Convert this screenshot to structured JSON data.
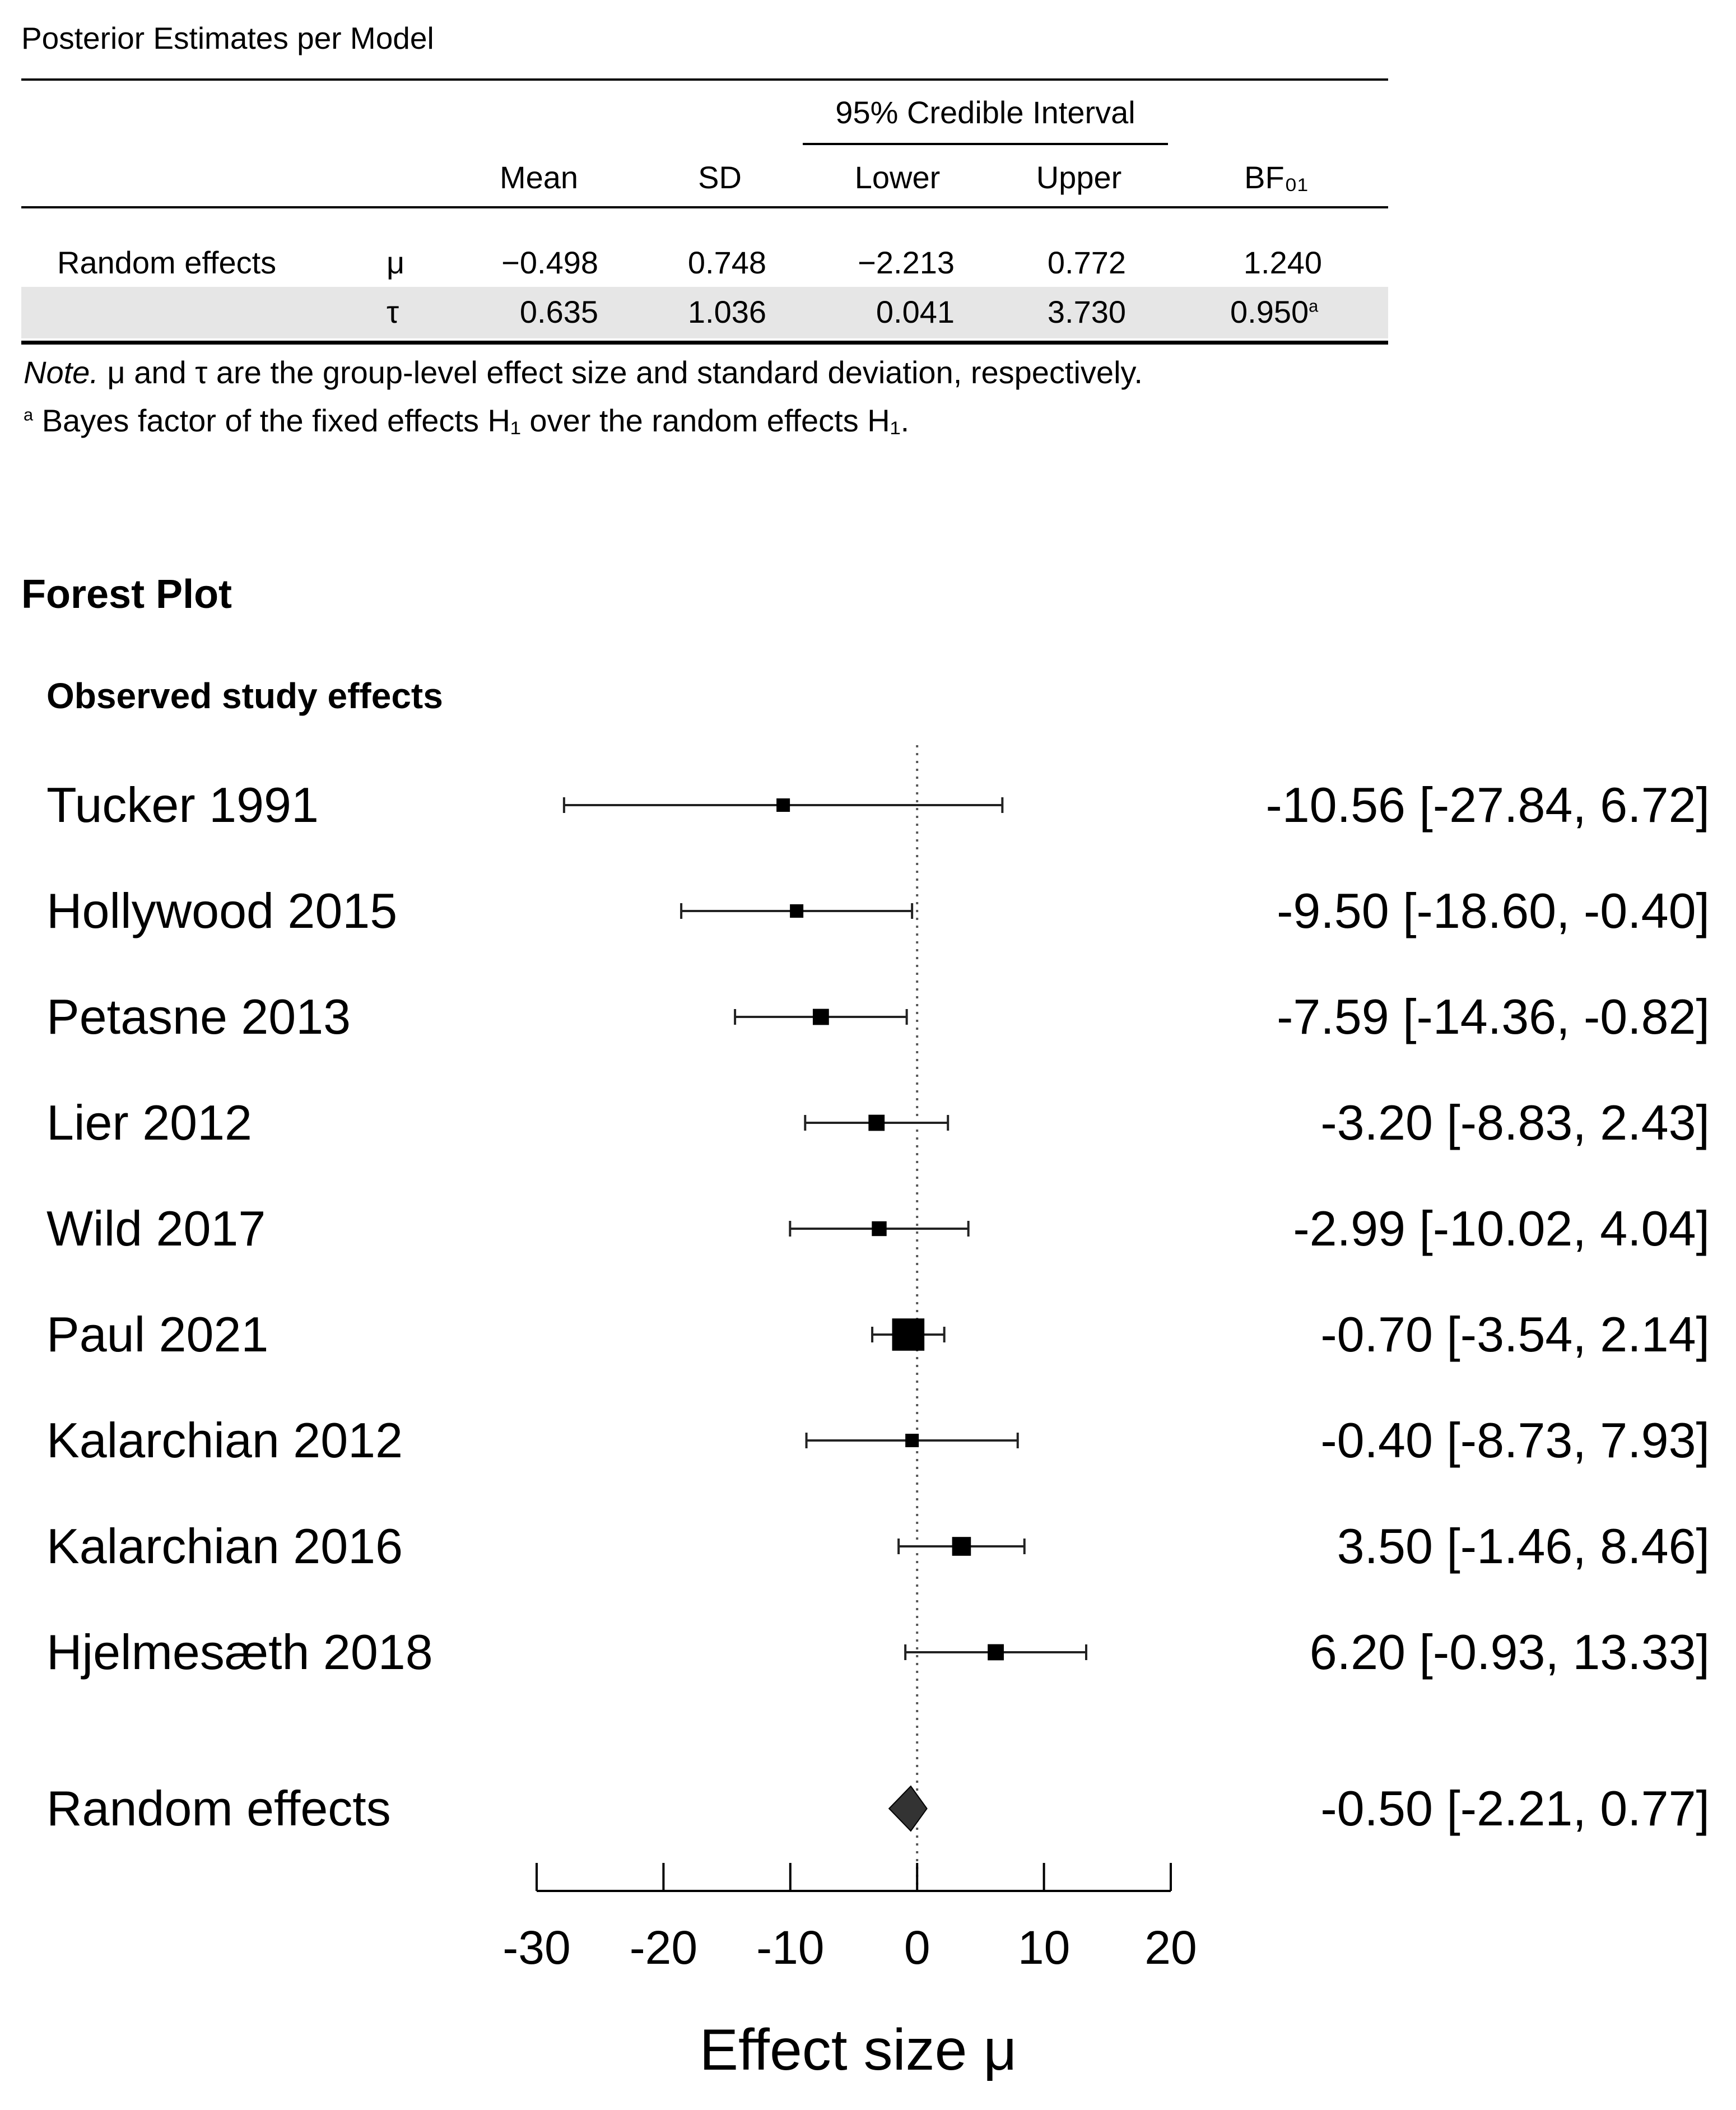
{
  "table": {
    "title": "Posterior Estimates per Model",
    "ci_header": "95% Credible Interval",
    "columns": [
      "Mean",
      "SD",
      "Lower",
      "Upper",
      "BF₀₁"
    ],
    "rows": [
      {
        "model": "Random effects",
        "param": "μ",
        "mean": "−0.498",
        "sd": "0.748",
        "lower": "−2.213",
        "upper": "0.772",
        "bf": "1.240",
        "bf_mark": ""
      },
      {
        "model": "",
        "param": "τ",
        "mean": "0.635",
        "sd": "1.036",
        "lower": "0.041",
        "upper": "3.730",
        "bf": "0.950",
        "bf_mark": "a"
      }
    ],
    "note_label": "Note.",
    "note_text": " μ and τ are the group-level effect size and standard deviation, respectively.",
    "footnote_mark": "a",
    "footnote_text": " Bayes factor of the fixed effects H₁ over the random effects H₁."
  },
  "forest": {
    "title": "Forest Plot",
    "subtitle": "Observed study effects"
  },
  "chart_data": {
    "type": "forest",
    "xlabel": "Effect size μ",
    "xlim": [
      -30,
      20
    ],
    "xticks": [
      -30,
      -20,
      -10,
      0,
      10,
      20
    ],
    "reference_line": 0,
    "studies": [
      {
        "label": "Tucker 1991",
        "estimate": -10.56,
        "lower": -27.84,
        "upper": 6.72,
        "text": "-10.56 [-27.84, 6.72]",
        "weight": 1
      },
      {
        "label": "Hollywood 2015",
        "estimate": -9.5,
        "lower": -18.6,
        "upper": -0.4,
        "text": "-9.50 [-18.60, -0.40]",
        "weight": 1
      },
      {
        "label": "Petasne 2013",
        "estimate": -7.59,
        "lower": -14.36,
        "upper": -0.82,
        "text": "-7.59 [-14.36, -0.82]",
        "weight": 1.2
      },
      {
        "label": "Lier 2012",
        "estimate": -3.2,
        "lower": -8.83,
        "upper": 2.43,
        "text": "-3.20 [-8.83, 2.43]",
        "weight": 1.2
      },
      {
        "label": "Wild 2017",
        "estimate": -2.99,
        "lower": -10.02,
        "upper": 4.04,
        "text": "-2.99 [-10.02, 4.04]",
        "weight": 1.1
      },
      {
        "label": "Paul 2021",
        "estimate": -0.7,
        "lower": -3.54,
        "upper": 2.14,
        "text": "-0.70 [-3.54, 2.14]",
        "weight": 2.4
      },
      {
        "label": "Kalarchian 2012",
        "estimate": -0.4,
        "lower": -8.73,
        "upper": 7.93,
        "text": "-0.40 [-8.73, 7.93]",
        "weight": 1
      },
      {
        "label": "Kalarchian 2016",
        "estimate": 3.5,
        "lower": -1.46,
        "upper": 8.46,
        "text": "3.50 [-1.46, 8.46]",
        "weight": 1.4
      },
      {
        "label": "Hjelmesæth 2018",
        "estimate": 6.2,
        "lower": -0.93,
        "upper": 13.33,
        "text": "6.20 [-0.93, 13.33]",
        "weight": 1.2
      }
    ],
    "summary": {
      "label": "Random effects",
      "estimate": -0.5,
      "lower": -2.21,
      "upper": 0.77,
      "text": "-0.50 [-2.21, 0.77]"
    }
  }
}
